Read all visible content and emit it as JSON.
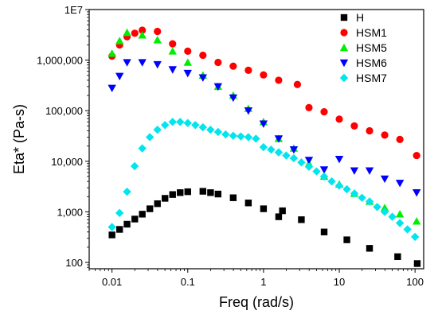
{
  "chart_data": {
    "type": "scatter",
    "xlabel": "Freq (rad/s)",
    "ylabel": "Eta* (Pa-s)",
    "x_scale": "log",
    "y_scale": "log",
    "xlim": [
      0.005,
      130
    ],
    "ylim": [
      75,
      10000000
    ],
    "x_ticks": [
      {
        "value": 0.01,
        "label": "0.01"
      },
      {
        "value": 0.1,
        "label": "0.1"
      },
      {
        "value": 1,
        "label": "1"
      },
      {
        "value": 10,
        "label": "10"
      },
      {
        "value": 100,
        "label": "100"
      }
    ],
    "y_ticks": [
      {
        "value": 100,
        "label": "100"
      },
      {
        "value": 1000,
        "label": "1,000"
      },
      {
        "value": 10000,
        "label": "10,000"
      },
      {
        "value": 100000,
        "label": "100,000"
      },
      {
        "value": 1000000,
        "label": "1,000,000"
      },
      {
        "value": 10000000,
        "label": "1E7"
      }
    ],
    "legend_position": "top-right",
    "series": [
      {
        "name": "H",
        "marker": "square",
        "color": "#000000",
        "x": [
          0.01,
          0.0126,
          0.0158,
          0.02,
          0.0251,
          0.0316,
          0.0398,
          0.0501,
          0.0631,
          0.0794,
          0.1,
          0.1585,
          0.2,
          0.2512,
          0.3981,
          0.631,
          1,
          1.585,
          1.778,
          3.16,
          6.31,
          12.6,
          25.1,
          59,
          107
        ],
        "y": [
          350,
          450,
          570,
          720,
          900,
          1150,
          1450,
          1850,
          2200,
          2400,
          2500,
          2550,
          2400,
          2250,
          1900,
          1500,
          1150,
          800,
          1050,
          700,
          400,
          280,
          190,
          130,
          95
        ]
      },
      {
        "name": "HSM1",
        "marker": "circle",
        "color": "#ff0000",
        "x": [
          0.01,
          0.0126,
          0.0158,
          0.02,
          0.0251,
          0.0398,
          0.0631,
          0.1,
          0.1585,
          0.2512,
          0.3981,
          0.631,
          1,
          1.585,
          2.8,
          3.98,
          6.31,
          10,
          15.8,
          25.1,
          39.8,
          63.1,
          105
        ],
        "y": [
          1200000,
          2000000,
          2900000,
          3400000,
          3900000,
          3700000,
          2100000,
          1500000,
          1250000,
          900000,
          760000,
          630000,
          510000,
          400000,
          330000,
          115000,
          95000,
          68000,
          50000,
          40000,
          33000,
          27000,
          13000
        ]
      },
      {
        "name": "HSM5",
        "marker": "triangle",
        "color": "#00ee00",
        "x": [
          0.01,
          0.0126,
          0.0158,
          0.0251,
          0.0398,
          0.0631,
          0.1,
          0.1585,
          0.2512,
          0.3981,
          0.631,
          1,
          1.585,
          2.512,
          3.98,
          6.31,
          10,
          15.8,
          25.1,
          39.8,
          63.1,
          105
        ],
        "y": [
          1350000,
          2400000,
          3500000,
          3100000,
          2500000,
          1500000,
          900000,
          500000,
          300000,
          200000,
          110000,
          60000,
          28000,
          18000,
          9000,
          5000,
          3500,
          2300,
          1600,
          1200,
          900,
          650
        ]
      },
      {
        "name": "HSM6",
        "marker": "triangle-down",
        "color": "#0000ff",
        "x": [
          0.01,
          0.0126,
          0.0158,
          0.0251,
          0.0398,
          0.0631,
          0.1,
          0.1585,
          0.2512,
          0.3981,
          0.631,
          1,
          1.585,
          2.512,
          3.98,
          6.31,
          10,
          15.8,
          25.1,
          39.8,
          63.1,
          105
        ],
        "y": [
          280000,
          480000,
          900000,
          900000,
          820000,
          650000,
          550000,
          450000,
          300000,
          180000,
          100000,
          55000,
          28000,
          17000,
          10500,
          6800,
          11000,
          6500,
          6500,
          4500,
          3700,
          2400
        ]
      },
      {
        "name": "HSM7",
        "marker": "diamond",
        "color": "#00e5ee",
        "x": [
          0.01,
          0.0126,
          0.0158,
          0.0199,
          0.0251,
          0.0316,
          0.0398,
          0.0501,
          0.0631,
          0.0794,
          0.1,
          0.1259,
          0.1585,
          0.1995,
          0.2512,
          0.3162,
          0.3981,
          0.5012,
          0.631,
          0.7943,
          1,
          1.259,
          1.585,
          1.995,
          2.512,
          3.162,
          3.981,
          5.012,
          6.31,
          7.943,
          10,
          12.59,
          15.85,
          19.95,
          25.12,
          31.62,
          39.81,
          50.12,
          63.1,
          79.43,
          100
        ],
        "y": [
          500,
          950,
          2500,
          8000,
          18000,
          30000,
          42000,
          52000,
          60000,
          60000,
          57000,
          52000,
          47000,
          42000,
          38000,
          34000,
          32000,
          31000,
          30000,
          28000,
          19000,
          17000,
          15000,
          13000,
          11500,
          9500,
          7800,
          6300,
          5000,
          4000,
          3300,
          2800,
          2300,
          1900,
          1600,
          1250,
          1000,
          800,
          600,
          450,
          320
        ]
      }
    ]
  }
}
